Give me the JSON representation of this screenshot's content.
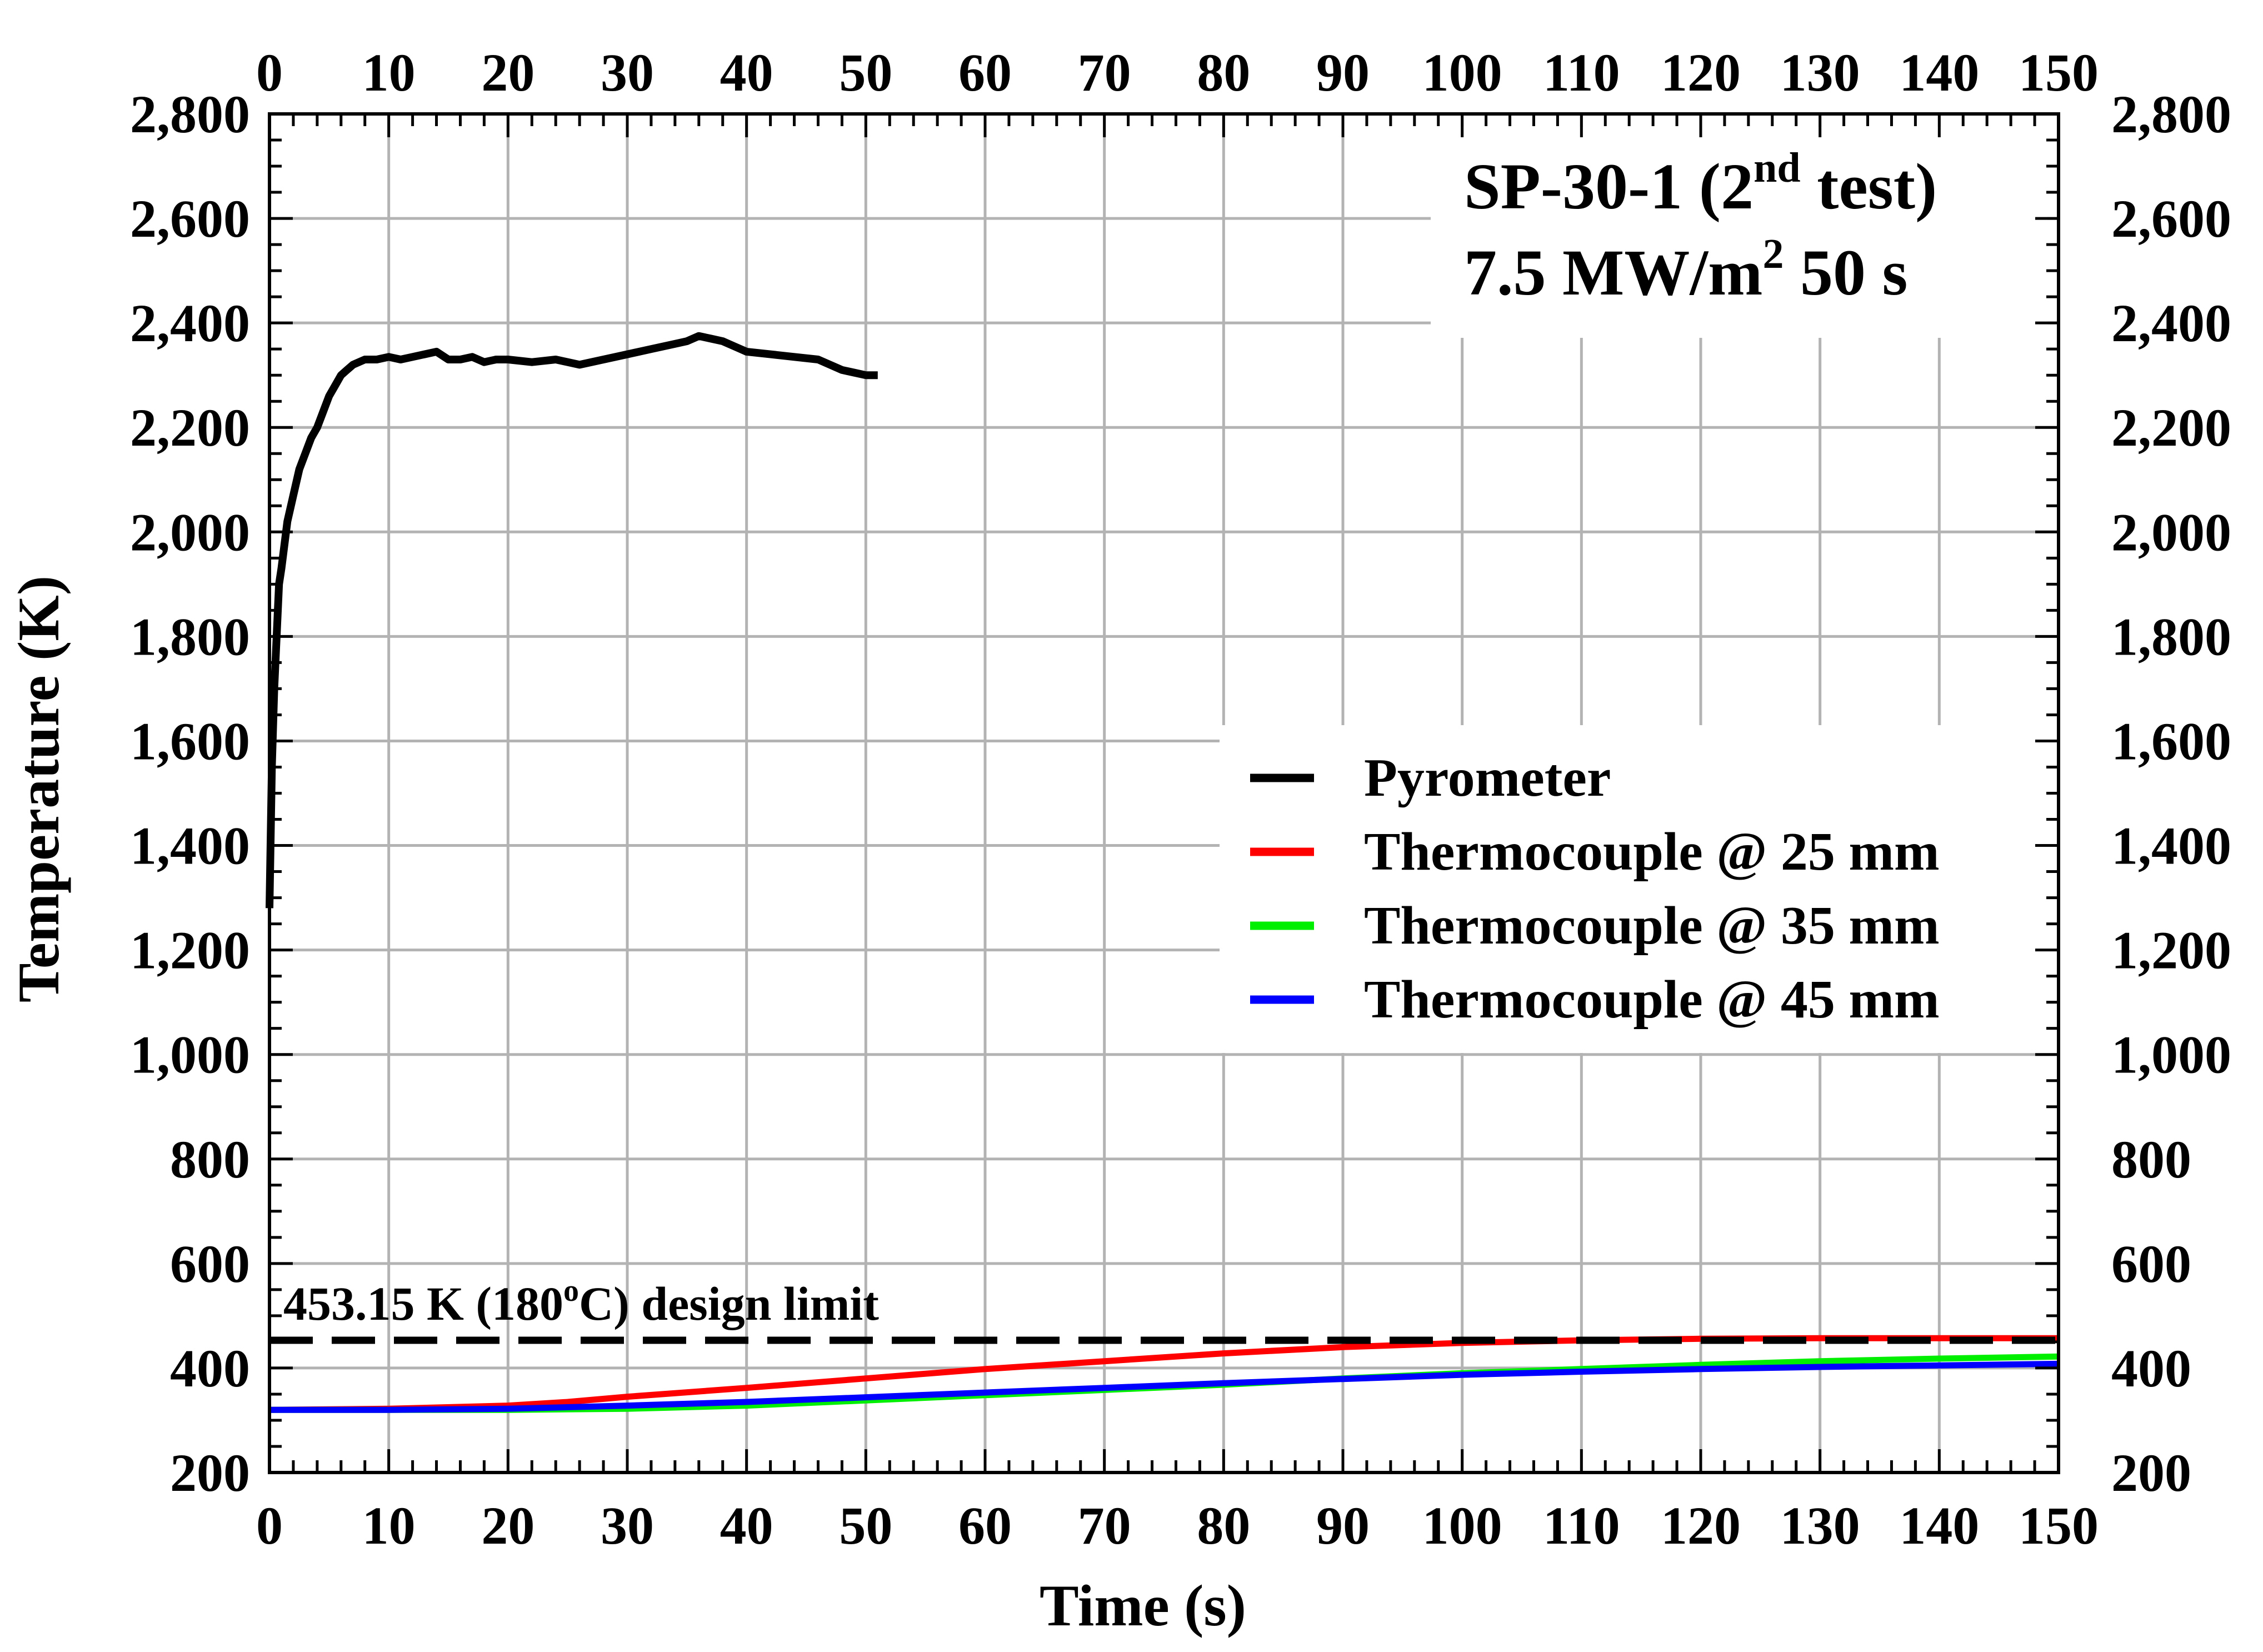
{
  "chart_data": {
    "type": "line",
    "title_line1": "SP-30-1 (2",
    "title_sup": "nd",
    "title_line1_end": " test)",
    "title_line2": "7.5 MW/m",
    "title_line2_sup": "2",
    "title_line2_end": " 50 s",
    "xlabel": "Time (s)",
    "ylabel": "Temperature (K)",
    "xlim": [
      0,
      150
    ],
    "ylim": [
      200,
      2800
    ],
    "x_ticks": [
      0,
      10,
      20,
      30,
      40,
      50,
      60,
      70,
      80,
      90,
      100,
      110,
      120,
      130,
      140,
      150
    ],
    "x_tick_labels": [
      "0",
      "10",
      "20",
      "30",
      "40",
      "50",
      "60",
      "70",
      "80",
      "90",
      "100",
      "110",
      "120",
      "130",
      "140",
      "150"
    ],
    "y_ticks": [
      200,
      400,
      600,
      800,
      1000,
      1200,
      1400,
      1600,
      1800,
      2000,
      2200,
      2400,
      2600,
      2800
    ],
    "y_tick_labels": [
      "200",
      "400",
      "600",
      "800",
      "1,000",
      "1,200",
      "1,400",
      "1,600",
      "1,800",
      "2,000",
      "2,200",
      "2,400",
      "2,600",
      "2,800"
    ],
    "grid": true,
    "legend_position": "center-right",
    "design_limit": {
      "value": 453.15,
      "label_pre": "453.15 K (180",
      "label_sup": "o",
      "label_post": "C) design limit",
      "color": "#000000"
    },
    "series": [
      {
        "name": "Pyrometer",
        "color": "#000000",
        "x": [
          0,
          0.2,
          0.4,
          0.6,
          0.8,
          1,
          1.5,
          2,
          2.5,
          3,
          3.5,
          4,
          4.5,
          5,
          5.5,
          6,
          6.5,
          7,
          8,
          9,
          10,
          11,
          12,
          13,
          14,
          15,
          16,
          17,
          18,
          19,
          20,
          22,
          24,
          26,
          28,
          30,
          32,
          34,
          35,
          36,
          37,
          38,
          39,
          40,
          42,
          44,
          46,
          48,
          49,
          50,
          51
        ],
        "values": [
          1280,
          1550,
          1700,
          1800,
          1900,
          1930,
          2020,
          2070,
          2120,
          2150,
          2180,
          2200,
          2230,
          2260,
          2280,
          2300,
          2310,
          2320,
          2330,
          2330,
          2335,
          2330,
          2335,
          2340,
          2345,
          2330,
          2330,
          2335,
          2325,
          2330,
          2330,
          2325,
          2330,
          2320,
          2330,
          2340,
          2350,
          2360,
          2365,
          2375,
          2370,
          2365,
          2355,
          2345,
          2340,
          2335,
          2330,
          2310,
          2305,
          2300,
          2300
        ]
      },
      {
        "name": "Thermocouple @ 25 mm",
        "color": "#ff0000",
        "x": [
          0,
          10,
          20,
          25,
          30,
          40,
          50,
          60,
          70,
          80,
          90,
          100,
          110,
          120,
          130,
          140,
          150
        ],
        "values": [
          320,
          322,
          328,
          335,
          345,
          362,
          380,
          398,
          413,
          428,
          440,
          448,
          453,
          456,
          457,
          457,
          457
        ]
      },
      {
        "name": "Thermocouple @ 35 mm",
        "color": "#00ee00",
        "x": [
          0,
          10,
          20,
          30,
          40,
          50,
          60,
          70,
          80,
          90,
          100,
          110,
          120,
          130,
          140,
          150
        ],
        "values": [
          320,
          320,
          320,
          322,
          328,
          338,
          348,
          358,
          368,
          380,
          390,
          398,
          406,
          413,
          418,
          422
        ]
      },
      {
        "name": "Thermocouple @ 45 mm",
        "color": "#0000ff",
        "x": [
          0,
          10,
          20,
          30,
          40,
          50,
          60,
          70,
          80,
          90,
          100,
          110,
          120,
          130,
          140,
          150
        ],
        "values": [
          320,
          320,
          322,
          328,
          335,
          344,
          353,
          362,
          371,
          379,
          387,
          393,
          398,
          402,
          405,
          408
        ]
      }
    ]
  }
}
